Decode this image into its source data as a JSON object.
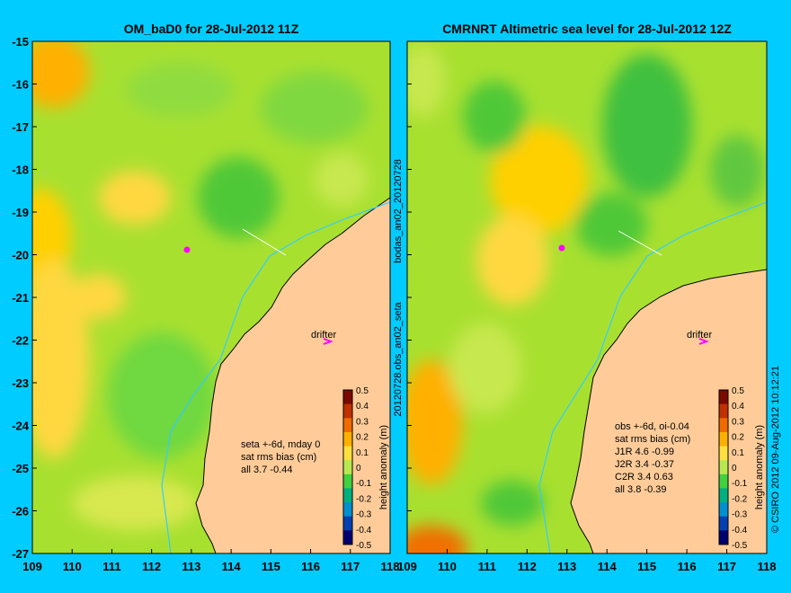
{
  "figure": {
    "copyright": "© CSIRO 2012   09-Aug-2012 10:12:21",
    "drifter_marker_color": "#ff00ff",
    "ocean_base_color": "#a8e030",
    "land_color": "#ffcc99",
    "coast_color": "#000000",
    "background_color": "#00ccff",
    "track_color": "#33ccff"
  },
  "left_panel": {
    "title": "OM_baD0 for 28-Jul-2012 11Z",
    "side_label": "bodas_an02_20120728",
    "drifter_label": "drifter",
    "stats_lines": [
      "seta +-6d, mday 0",
      "sat rms bias (cm)",
      "all 3.7 -0.44"
    ]
  },
  "right_panel": {
    "title": "CMRNRT Altimetric sea level  for 28-Jul-2012 12Z",
    "side_label": "20120728.obs_an02_seta",
    "drifter_label": "drifter",
    "stats_lines": [
      "obs +-6d, oi-0.04",
      "sat rms bias (cm)",
      "J1R   4.6 -0.99",
      "J2R   3.4 -0.37",
      "C2R   3.4  0.63",
      "all  3.8 -0.39"
    ]
  },
  "axes": {
    "x_ticks": [
      "109",
      "110",
      "111",
      "112",
      "113",
      "114",
      "115",
      "116",
      "117",
      "118"
    ],
    "y_ticks": [
      "-15",
      "-16",
      "-17",
      "-18",
      "-19",
      "-20",
      "-21",
      "-22",
      "-23",
      "-24",
      "-25",
      "-26",
      "-27"
    ]
  },
  "colorbar": {
    "label": "height anomaly (m)",
    "ticks": [
      "0.5",
      "0.4",
      "0.3",
      "0.2",
      "0.1",
      "0",
      "-0.1",
      "-0.2",
      "-0.3",
      "-0.4",
      "-0.5"
    ],
    "colors": [
      "#7a0a00",
      "#c03000",
      "#f06a00",
      "#ffb000",
      "#ffe040",
      "#b8e850",
      "#40d040",
      "#00b080",
      "#0090d0",
      "#0040b0",
      "#000070"
    ]
  }
}
